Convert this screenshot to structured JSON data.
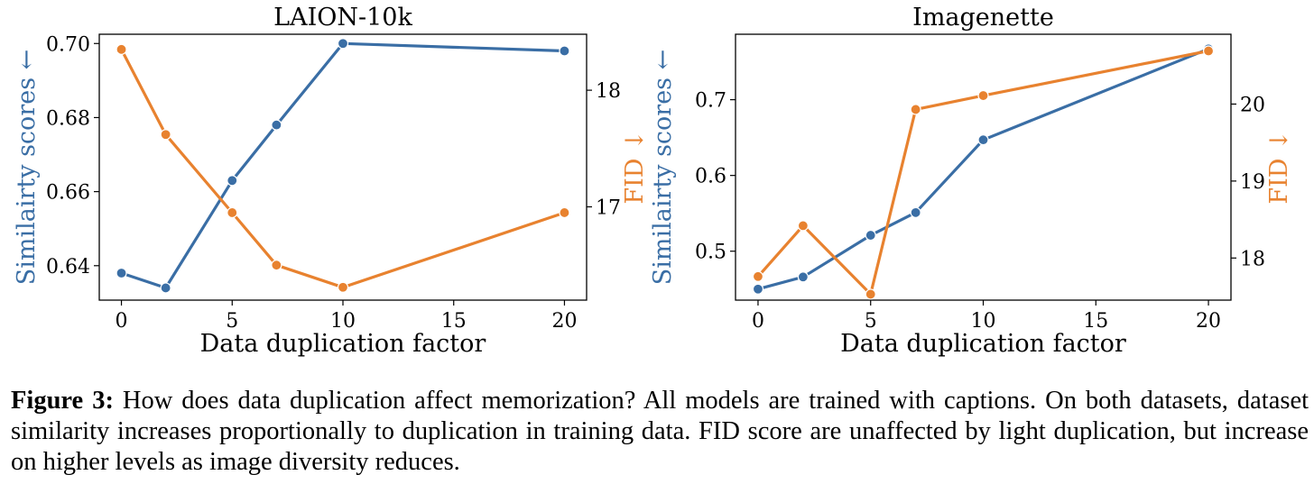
{
  "colors": {
    "similarity": "#3a6ea5",
    "fid": "#e8822f",
    "axis": "#000000"
  },
  "chart_data": [
    {
      "type": "line",
      "title": "LAION-10k",
      "xlabel": "Data duplication factor",
      "ylabel_left": "Similairty scores ←",
      "ylabel_right": "FID ↓",
      "x": [
        0,
        2,
        5,
        7,
        10,
        20
      ],
      "xlim": [
        -1,
        21
      ],
      "xticks": [
        0,
        5,
        10,
        15,
        20
      ],
      "ylim_left": [
        0.6307,
        0.7025
      ],
      "yticks_left": [
        0.64,
        0.66,
        0.68,
        0.7
      ],
      "yticklabels_left": [
        "0.64",
        "0.66",
        "0.68",
        "0.70"
      ],
      "ylim_right": [
        16.2,
        18.48
      ],
      "yticks_right": [
        17,
        18
      ],
      "yticklabels_right": [
        "17",
        "18"
      ],
      "series": [
        {
          "axis": "left",
          "values": [
            0.638,
            0.634,
            0.663,
            0.678,
            0.7,
            0.698
          ]
        },
        {
          "axis": "right",
          "values": [
            18.35,
            17.62,
            16.95,
            16.5,
            16.31,
            16.95
          ]
        }
      ]
    },
    {
      "type": "line",
      "title": "Imagenette",
      "xlabel": "Data duplication factor",
      "ylabel_left": "Similairty scores ←",
      "ylabel_right": "FID ↓",
      "x": [
        0,
        2,
        5,
        7,
        10,
        20
      ],
      "xlim": [
        -1,
        21
      ],
      "xticks": [
        0,
        5,
        10,
        15,
        20
      ],
      "ylim_left": [
        0.4354,
        0.7864
      ],
      "yticks_left": [
        0.5,
        0.6,
        0.7
      ],
      "yticklabels_left": [
        "0.5",
        "0.6",
        "0.7"
      ],
      "ylim_right": [
        17.453,
        20.907
      ],
      "yticks_right": [
        18,
        19,
        20
      ],
      "yticklabels_right": [
        "18",
        "19",
        "20"
      ],
      "series": [
        {
          "axis": "left",
          "values": [
            0.45,
            0.466,
            0.521,
            0.551,
            0.647,
            0.767
          ]
        },
        {
          "axis": "right",
          "values": [
            17.76,
            18.42,
            17.53,
            19.93,
            20.11,
            20.69
          ]
        }
      ]
    }
  ],
  "caption": {
    "label": "Figure 3:",
    "text": "How does data duplication affect memorization? All models are trained with captions. On both datasets, dataset similarity increases proportionally to duplication in training data. FID score are unaffected by light duplication, but increase on higher levels as image diversity reduces."
  }
}
